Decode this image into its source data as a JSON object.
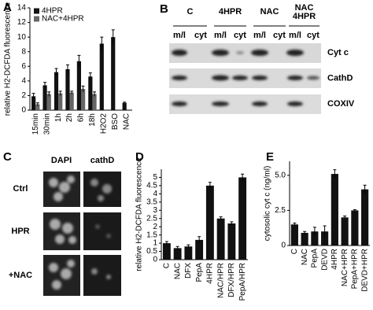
{
  "chart_data": [
    {
      "type": "bar",
      "title": "A",
      "ylabel": "relative H2-DCFDA fluorescence",
      "categories": [
        "15min",
        "30min",
        "1h",
        "2h",
        "6h",
        "18h",
        "H2O2",
        "BSO",
        "NAC"
      ],
      "series": [
        {
          "name": "4HPR",
          "color": "#111111",
          "values": [
            1.9,
            3.4,
            5.2,
            5.6,
            6.7,
            4.6,
            9.1,
            10,
            1.0
          ],
          "errors": [
            0.4,
            0.4,
            0.5,
            0.6,
            0.8,
            0.5,
            0.9,
            1.0,
            0.1
          ]
        },
        {
          "name": "NAC+4HPR",
          "color": "#666666",
          "values": [
            0.8,
            2.2,
            2.3,
            2.4,
            2.9,
            2.2,
            null,
            null,
            null
          ],
          "errors": [
            0.2,
            0.3,
            0.3,
            0.2,
            0.4,
            0.3,
            null,
            null,
            null
          ]
        }
      ],
      "ylim": [
        0,
        14
      ],
      "yticks": [
        0,
        2,
        4,
        6,
        8,
        10,
        12,
        14
      ],
      "legend": "upper left"
    },
    {
      "type": "bar",
      "title": "D",
      "ylabel": "relative H2-DCFDA fluorescence",
      "categories": [
        "C",
        "NAC",
        "DFX",
        "PepA",
        "4HPR",
        "NAC/HPR",
        "DFX/HPR",
        "PepA/HPR"
      ],
      "values": [
        1.0,
        0.7,
        0.8,
        1.2,
        4.5,
        2.5,
        2.2,
        5.0
      ],
      "errors": [
        0.1,
        0.1,
        0.1,
        0.2,
        0.2,
        0.1,
        0.1,
        0.2
      ],
      "color": "#111111",
      "ylim": [
        0,
        5.5
      ],
      "yticks": [
        0,
        0.5,
        1,
        1.5,
        2,
        2.5,
        3,
        3.5,
        4,
        4.5,
        5
      ]
    },
    {
      "type": "bar",
      "title": "E",
      "ylabel": "cytosolic cyt c (ng/ml)",
      "categories": [
        "C",
        "NAC",
        "PepA",
        "DEVD",
        "4HPR",
        "NAC+HPR",
        "PepA+HPR",
        "DEVD+HPR"
      ],
      "values": [
        1.5,
        0.9,
        1.0,
        1.0,
        5.1,
        2.0,
        2.5,
        4.0
      ],
      "errors": [
        0.1,
        0.1,
        0.3,
        0.4,
        0.3,
        0.1,
        0.05,
        0.3
      ],
      "color": "#111111",
      "ylim": [
        0,
        6
      ],
      "yticks": [
        0,
        {
          "value": 2.5,
          "label": "2.5"
        },
        {
          "value": 5,
          "label": "5.0"
        }
      ]
    }
  ],
  "blot": {
    "label": "B",
    "groups": [
      [
        "C"
      ],
      [
        "4HPR"
      ],
      [
        "NAC"
      ],
      [
        "NAC",
        "4HPR"
      ]
    ],
    "lanes": [
      "m/l",
      "cyt",
      "m/l",
      "cyt",
      "m/l",
      "cyt",
      "m/l",
      "cyt"
    ],
    "rows": [
      "Cyt c",
      "CathD",
      "COXIV"
    ]
  },
  "micrographs": {
    "label": "C",
    "columns": [
      "DAPI",
      "cathD"
    ],
    "rows": [
      "Ctrl",
      "HPR",
      "+NAC"
    ]
  }
}
